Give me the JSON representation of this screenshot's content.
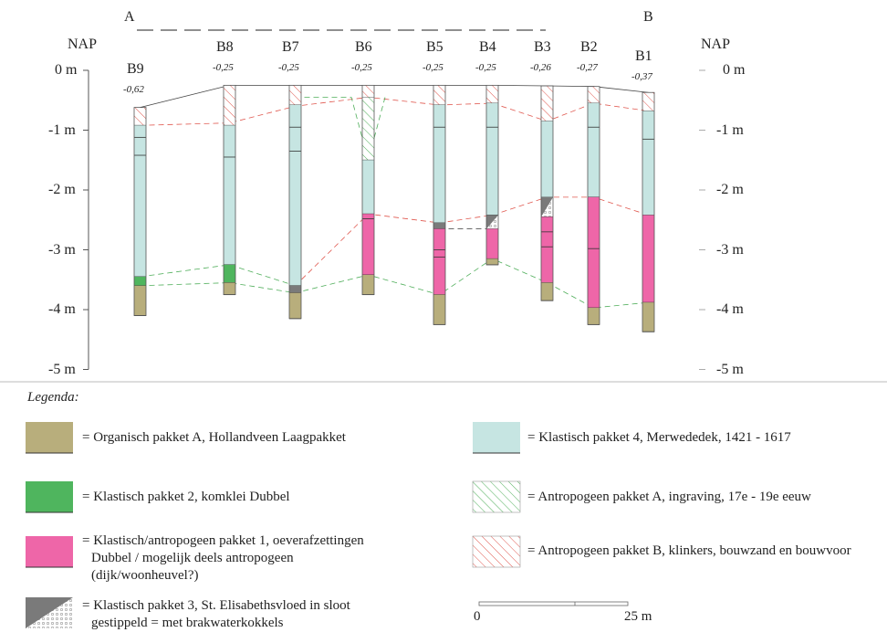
{
  "section_labels": {
    "a": "A",
    "b": "B"
  },
  "axis": {
    "title_left": "NAP",
    "title_right": "NAP",
    "ticks": [
      "0 m",
      "-1 m",
      "-2 m",
      "-3 m",
      "-4 m",
      "-5 m"
    ],
    "ticks_right": [
      "0 m",
      "-1 m",
      "-2 m",
      "-3 m",
      "-4 m",
      "-5 m"
    ]
  },
  "colors": {
    "organisch": "#b8ae7c",
    "klastisch2": "#4fb55e",
    "klastisch_antropogeen1": "#ee66a8",
    "klastisch3": "#7a7a7a",
    "klastisch4": "#c6e5e2",
    "antropogeen_a": "#4fae5a",
    "antropogeen_b": "#e0584f"
  },
  "boreholes": [
    {
      "name": "B9",
      "elevation": "-0,62",
      "top": -0.62,
      "layers": [
        {
          "type": "antropogeen_b",
          "from": -0.62,
          "to": -0.92
        },
        {
          "type": "klastisch4",
          "from": -0.92,
          "to": -3.45
        },
        {
          "type": "klastisch2",
          "from": -3.45,
          "to": -3.6
        },
        {
          "type": "organisch",
          "from": -3.6,
          "to": -4.1
        }
      ],
      "marks": [
        -1.12,
        -1.42
      ]
    },
    {
      "name": "B8",
      "elevation": "-0,25",
      "top": -0.25,
      "layers": [
        {
          "type": "antropogeen_b",
          "from": -0.25,
          "to": -0.92
        },
        {
          "type": "klastisch4",
          "from": -0.92,
          "to": -3.25
        },
        {
          "type": "klastisch2",
          "from": -3.25,
          "to": -3.55
        },
        {
          "type": "organisch",
          "from": -3.55,
          "to": -3.75
        }
      ],
      "marks": [
        -1.45
      ]
    },
    {
      "name": "B7",
      "elevation": "-0,25",
      "top": -0.25,
      "layers": [
        {
          "type": "antropogeen_b",
          "from": -0.25,
          "to": -0.58
        },
        {
          "type": "klastisch4",
          "from": -0.58,
          "to": -3.6
        },
        {
          "type": "klastisch3",
          "from": -3.6,
          "to": -3.72
        },
        {
          "type": "organisch",
          "from": -3.72,
          "to": -4.15
        }
      ],
      "marks": [
        -0.95,
        -1.35
      ]
    },
    {
      "name": "B6",
      "elevation": "-0,25",
      "top": -0.25,
      "layers": [
        {
          "type": "antropogeen_b",
          "from": -0.25,
          "to": -0.45
        },
        {
          "type": "antropogeen_a",
          "from": -0.45,
          "to": -1.5
        },
        {
          "type": "klastisch4",
          "from": -1.5,
          "to": -2.4
        },
        {
          "type": "klastisch_antropogeen1",
          "from": -2.4,
          "to": -3.42
        },
        {
          "type": "organisch",
          "from": -3.42,
          "to": -3.75
        }
      ],
      "marks": [
        -2.48
      ]
    },
    {
      "name": "B5",
      "elevation": "-0,25",
      "top": -0.25,
      "layers": [
        {
          "type": "antropogeen_b",
          "from": -0.25,
          "to": -0.58
        },
        {
          "type": "klastisch4",
          "from": -0.58,
          "to": -2.55
        },
        {
          "type": "klastisch3",
          "from": -2.55,
          "to": -2.65
        },
        {
          "type": "klastisch_antropogeen1",
          "from": -2.65,
          "to": -3.75
        },
        {
          "type": "organisch",
          "from": -3.75,
          "to": -4.25
        }
      ],
      "marks": [
        -0.95,
        -3.0,
        -3.12
      ]
    },
    {
      "name": "B4",
      "elevation": "-0,25",
      "top": -0.25,
      "layers": [
        {
          "type": "antropogeen_b",
          "from": -0.25,
          "to": -0.55
        },
        {
          "type": "klastisch4",
          "from": -0.55,
          "to": -2.42
        },
        {
          "type": "klastisch3_dotted",
          "from": -2.42,
          "to": -2.65
        },
        {
          "type": "klastisch_antropogeen1",
          "from": -2.65,
          "to": -3.15
        },
        {
          "type": "organisch",
          "from": -3.15,
          "to": -3.25
        }
      ],
      "marks": [
        -0.95
      ]
    },
    {
      "name": "B3",
      "elevation": "-0,26",
      "top": -0.26,
      "layers": [
        {
          "type": "antropogeen_b",
          "from": -0.26,
          "to": -0.85
        },
        {
          "type": "klastisch4",
          "from": -0.85,
          "to": -2.12
        },
        {
          "type": "klastisch3_dotted",
          "from": -2.12,
          "to": -2.45
        },
        {
          "type": "klastisch_antropogeen1",
          "from": -2.45,
          "to": -3.55
        },
        {
          "type": "organisch",
          "from": -3.55,
          "to": -3.85
        }
      ],
      "marks": [
        -2.7,
        -2.95
      ]
    },
    {
      "name": "B2",
      "elevation": "-0,27",
      "top": -0.27,
      "layers": [
        {
          "type": "antropogeen_b",
          "from": -0.27,
          "to": -0.55
        },
        {
          "type": "klastisch4",
          "from": -0.55,
          "to": -2.12
        },
        {
          "type": "klastisch_antropogeen1",
          "from": -2.12,
          "to": -3.97
        },
        {
          "type": "organisch",
          "from": -3.97,
          "to": -4.25
        }
      ],
      "marks": [
        -0.95,
        -2.98
      ]
    },
    {
      "name": "B1",
      "elevation": "-0,37",
      "top": -0.37,
      "layers": [
        {
          "type": "antropogeen_b",
          "from": -0.37,
          "to": -0.68
        },
        {
          "type": "klastisch4",
          "from": -0.68,
          "to": -2.42
        },
        {
          "type": "klastisch_antropogeen1",
          "from": -2.42,
          "to": -3.88
        },
        {
          "type": "organisch",
          "from": -3.88,
          "to": -4.37
        }
      ],
      "marks": [
        -1.15
      ]
    }
  ],
  "legend": {
    "title": "Legenda:",
    "items": [
      {
        "key": "organisch",
        "text": [
          "= Organisch pakket A, Hollandveen Laagpakket"
        ]
      },
      {
        "key": "klastisch2",
        "text": [
          "= Klastisch pakket 2, komklei Dubbel"
        ]
      },
      {
        "key": "klastisch_antropogeen1",
        "text": [
          "= Klastisch/antropogeen pakket 1, oeverafzettingen",
          "Dubbel / mogelijk deels antropogeen",
          "(dijk/woonheuvel?)"
        ]
      },
      {
        "key": "klastisch3",
        "text": [
          "= Klastisch pakket 3, St. Elisabethsvloed in sloot",
          "gestippeld = met brakwaterkokkels"
        ]
      },
      {
        "key": "klastisch4",
        "text": [
          "= Klastisch pakket 4, Merwededek, 1421 - 1617"
        ]
      },
      {
        "key": "antropogeen_a",
        "text": [
          "= Antropogeen pakket A, ingraving, 17e - 19e eeuw"
        ]
      },
      {
        "key": "antropogeen_b",
        "text": [
          "= Antropogeen pakket B, klinkers, bouwzand en bouwvoor"
        ]
      }
    ]
  },
  "scale": {
    "start": "0",
    "end": "25 m"
  }
}
